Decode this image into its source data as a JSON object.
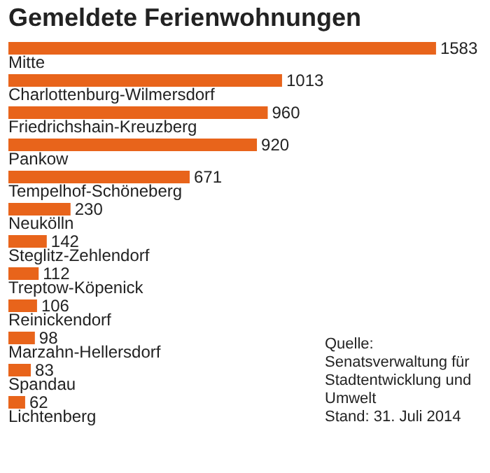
{
  "chart_data": {
    "type": "bar",
    "orientation": "horizontal",
    "title": "Gemeldete Ferienwohnungen",
    "categories": [
      "Mitte",
      "Charlottenburg-Wilmersdorf",
      "Friedrichshain-Kreuzberg",
      "Pankow",
      "Tempelhof-Schöneberg",
      "Neukölln",
      "Steglitz-Zehlendorf",
      "Treptow-Köpenick",
      "Reinickendorf",
      "Marzahn-Hellersdorf",
      "Spandau",
      "Lichtenberg"
    ],
    "values": [
      1583,
      1013,
      960,
      920,
      671,
      230,
      142,
      112,
      106,
      98,
      83,
      62
    ],
    "color": "#e8641b",
    "data_labels": true,
    "annotations": [
      "Quelle: Senatsverwaltung für Stadtentwicklung und Umwelt",
      "Stand: 31. Juli 2014"
    ]
  }
}
